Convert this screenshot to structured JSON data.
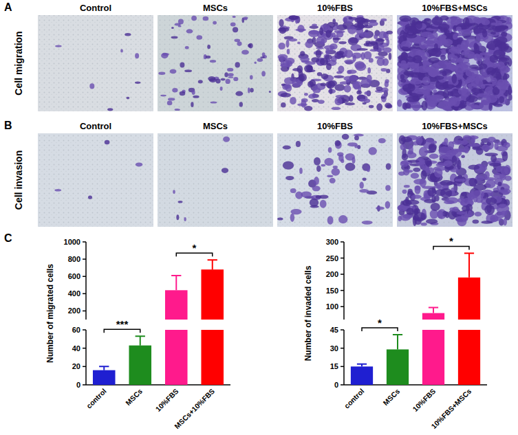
{
  "figure": {
    "panels": [
      {
        "label": "A",
        "row_label": "Cell migration",
        "image_titles": [
          "Control",
          "MSCs",
          "10%FBS",
          "10%FBS+MSCs"
        ]
      },
      {
        "label": "B",
        "row_label": "Cell invasion",
        "image_titles": [
          "Control",
          "MSCs",
          "10%FBS",
          "10%FBS+MSCs"
        ]
      }
    ],
    "chart_panel_label": "C"
  },
  "chart_data": [
    {
      "type": "bar",
      "y_label": "Number of migrated cells",
      "categories": [
        "control",
        "MSCs",
        "10%FBS",
        "MSCs+10%FBS"
      ],
      "values": [
        16,
        43,
        440,
        680
      ],
      "errors": [
        4,
        10,
        170,
        110
      ],
      "colors": [
        "#1f1fd1",
        "#1e8c1e",
        "#ff1a8c",
        "#ff0000"
      ],
      "ylim": [
        0,
        1000
      ],
      "yticks": [
        0,
        20,
        40,
        60,
        200,
        400,
        600,
        800,
        1000
      ],
      "axis_break": [
        60,
        100
      ],
      "annotations": [
        {
          "text": "***",
          "between": [
            0,
            1
          ]
        },
        {
          "text": "*",
          "between": [
            2,
            3
          ]
        }
      ]
    },
    {
      "type": "bar",
      "y_label": "Number of invaded cells",
      "categories": [
        "control",
        "MSCs",
        "10%FBS",
        "10%FBS+MSCs"
      ],
      "values": [
        15,
        29,
        80,
        190
      ],
      "errors": [
        2,
        12,
        17,
        75
      ],
      "colors": [
        "#1f1fd1",
        "#1e8c1e",
        "#ff1a8c",
        "#ff0000"
      ],
      "ylim": [
        0,
        300
      ],
      "yticks": [
        0,
        15,
        30,
        45,
        100,
        150,
        200,
        250,
        300
      ],
      "axis_break": [
        45,
        60
      ],
      "annotations": [
        {
          "text": "*",
          "between": [
            0,
            1
          ]
        },
        {
          "text": "*",
          "between": [
            2,
            3
          ]
        }
      ]
    }
  ]
}
